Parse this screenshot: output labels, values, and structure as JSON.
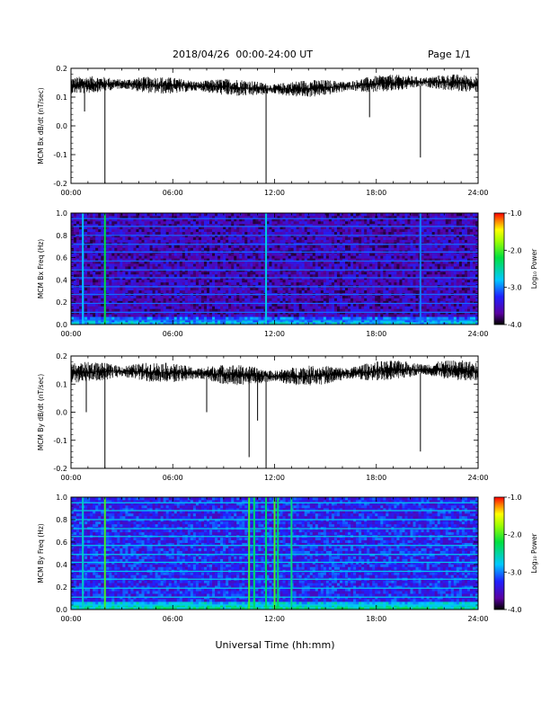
{
  "header": {
    "title": "2018/04/26  00:00-24:00 UT",
    "page": "Page 1/1"
  },
  "x_axis_title": "Universal Time (hh:mm)",
  "x_tick_labels": [
    "00:00",
    "06:00",
    "12:00",
    "18:00",
    "24:00"
  ],
  "colorbar": {
    "label": "Log₁₀ Power",
    "tick_labels": [
      "-1.0",
      "-2.0",
      "-3.0",
      "-4.0"
    ],
    "range": [
      -4.0,
      -1.0
    ],
    "colormap": "rainbow (black-purple-blue-cyan-green-yellow-red)"
  },
  "chart_data": [
    {
      "type": "line",
      "ylabel": "MCM Bx dB/dt (nT/sec)",
      "y_tick_labels": [
        "0.2",
        "0.1",
        "0.0",
        "-0.1",
        "-0.2"
      ],
      "ylim": [
        -0.2,
        0.2
      ],
      "xlim": [
        "00:00",
        "24:00"
      ],
      "baseline": 0.14,
      "noise_amplitude": 0.025,
      "color": "#000000",
      "spikes": [
        {
          "time": "02:00",
          "min": -0.2
        },
        {
          "time": "11:30",
          "min": -0.2
        },
        {
          "time": "00:48",
          "min": 0.05
        },
        {
          "time": "17:36",
          "min": 0.03
        },
        {
          "time": "20:36",
          "min": -0.11
        }
      ]
    },
    {
      "type": "heatmap",
      "ylabel": "MCM Bx Freq (Hz)",
      "y_tick_labels": [
        "1.0",
        "0.8",
        "0.6",
        "0.4",
        "0.2",
        "0.0"
      ],
      "ylim": [
        0.0,
        1.0
      ],
      "xlim": [
        "00:00",
        "24:00"
      ],
      "background_log_power": -3.6,
      "harmonic_lines_hz": [
        0.04,
        0.11,
        0.19,
        0.27,
        0.34,
        0.42,
        0.49,
        0.57,
        0.65,
        0.72,
        0.8,
        0.88,
        0.95
      ],
      "bright_columns": [
        {
          "time": "02:00",
          "log_power": -2.2
        },
        {
          "time": "11:30",
          "log_power": -2.7
        },
        {
          "time": "00:42",
          "log_power": -2.8
        },
        {
          "time": "20:36",
          "log_power": -3.0
        }
      ]
    },
    {
      "type": "line",
      "ylabel": "MCM By dB/dt (nT/sec)",
      "y_tick_labels": [
        "0.2",
        "0.1",
        "0.0",
        "-0.1",
        "-0.2"
      ],
      "ylim": [
        -0.2,
        0.2
      ],
      "xlim": [
        "00:00",
        "24:00"
      ],
      "baseline": 0.14,
      "noise_amplitude": 0.03,
      "color": "#000000",
      "spikes": [
        {
          "time": "02:00",
          "min": -0.2
        },
        {
          "time": "11:30",
          "min": -0.2
        },
        {
          "time": "10:30",
          "min": -0.16
        },
        {
          "time": "00:54",
          "min": 0.0
        },
        {
          "time": "20:36",
          "min": -0.14
        },
        {
          "time": "11:00",
          "min": -0.03
        },
        {
          "time": "08:00",
          "min": 0.0
        }
      ]
    },
    {
      "type": "heatmap",
      "ylabel": "MCM By Freq (Hz)",
      "y_tick_labels": [
        "1.0",
        "0.8",
        "0.6",
        "0.4",
        "0.2",
        "0.0"
      ],
      "ylim": [
        0.0,
        1.0
      ],
      "xlim": [
        "00:00",
        "24:00"
      ],
      "background_log_power": -3.3,
      "harmonic_lines_hz": [
        0.04,
        0.11,
        0.19,
        0.27,
        0.34,
        0.42,
        0.49,
        0.57,
        0.65,
        0.72,
        0.8,
        0.88,
        0.95
      ],
      "bright_columns": [
        {
          "time": "02:00",
          "log_power": -2.0
        },
        {
          "time": "10:30",
          "log_power": -2.0
        },
        {
          "time": "10:48",
          "log_power": -2.3
        },
        {
          "time": "11:30",
          "log_power": -2.3
        },
        {
          "time": "12:00",
          "log_power": -2.0
        },
        {
          "time": "12:12",
          "log_power": -2.3
        },
        {
          "time": "13:00",
          "log_power": -2.4
        },
        {
          "time": "00:42",
          "log_power": -2.6
        }
      ]
    }
  ]
}
